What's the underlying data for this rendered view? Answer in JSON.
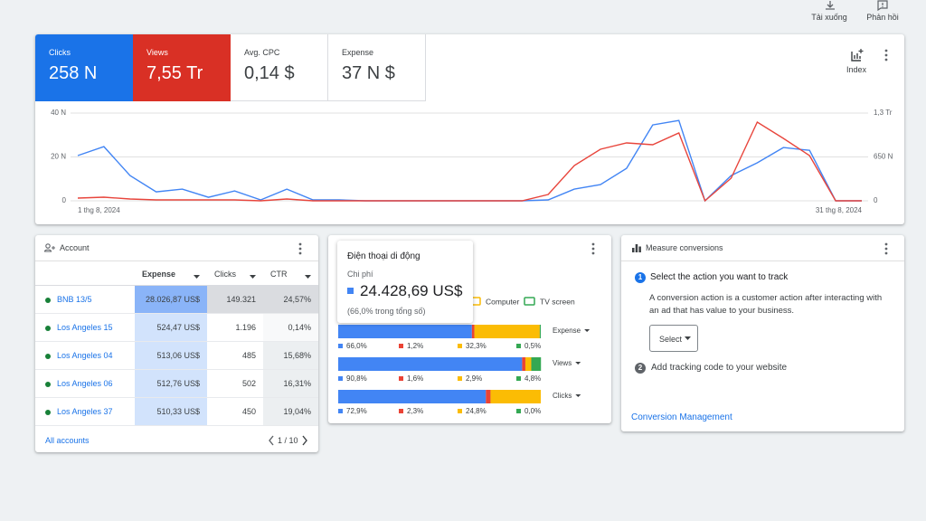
{
  "toolbar": {
    "download": "Tải xuống",
    "feedback": "Phản hồi"
  },
  "overview": {
    "metrics": [
      {
        "label": "Clicks",
        "value": "258 N"
      },
      {
        "label": "Views",
        "value": "7,55 Tr"
      },
      {
        "label": "Avg. CPC",
        "value": "0,14 $"
      },
      {
        "label": "Expense",
        "value": "37 N $"
      }
    ],
    "index_button": "Index"
  },
  "chart_data": [
    {
      "type": "line",
      "x": [
        "1 thg 8, 2024",
        null,
        null,
        null,
        null,
        null,
        null,
        null,
        null,
        null,
        null,
        null,
        null,
        null,
        null,
        null,
        null,
        null,
        null,
        null,
        null,
        null,
        null,
        null,
        null,
        null,
        null,
        null,
        null,
        null,
        "31 thg 8, 2024"
      ],
      "series": [
        {
          "color": "#4285f4",
          "values": [
            20600,
            24700,
            11500,
            4100,
            5300,
            1600,
            4500,
            400,
            5300,
            400,
            400,
            0,
            0,
            0,
            0,
            0,
            0,
            0,
            400,
            5300,
            7400,
            14800,
            34600,
            36600,
            0,
            11500,
            17300,
            24300,
            23000,
            0,
            0
          ]
        },
        {
          "color": "#e8453c",
          "axis": "y2",
          "values": [
            40000,
            53000,
            27000,
            13000,
            13000,
            13000,
            13000,
            0,
            27000,
            0,
            0,
            0,
            0,
            0,
            0,
            0,
            0,
            0,
            94000,
            523000,
            764000,
            858000,
            831000,
            1005000,
            0,
            335000,
            1166000,
            925000,
            670000,
            0,
            0
          ]
        }
      ],
      "ylim": [
        0,
        40000
      ],
      "yticks": [
        0,
        {
          "value": 20000,
          "label": "20 N"
        },
        {
          "value": 40000,
          "label": "40 N"
        }
      ],
      "y2lim": [
        0,
        1300000
      ],
      "y2ticks": [
        0,
        {
          "value": 650000,
          "label": "650 N"
        },
        {
          "value": 1300000,
          "label": "1,3 Tr"
        }
      ],
      "grid": true
    },
    {
      "type": "stacked_bar",
      "categories": [
        "Expense",
        "Views",
        "Clicks"
      ],
      "xlim": [
        0,
        100
      ],
      "series": [
        {
          "color": "#4285f4",
          "values": [
            66.0,
            90.8,
            72.9
          ],
          "value_labels": [
            "66,0%",
            "90,8%",
            "72,9%"
          ]
        },
        {
          "color": "#ea4335",
          "values": [
            1.2,
            1.6,
            2.3
          ],
          "value_labels": [
            "1,2%",
            "1,6%",
            "2,3%"
          ]
        },
        {
          "name": "Computer",
          "color": "#fbbc04",
          "values": [
            32.3,
            2.9,
            24.8
          ],
          "value_labels": [
            "32,3%",
            "2,9%",
            "24,8%"
          ]
        },
        {
          "name": "TV screen",
          "color": "#34a853",
          "values": [
            0.5,
            4.8,
            0.0
          ],
          "value_labels": [
            "0,5%",
            "4,8%",
            "0,0%"
          ]
        }
      ],
      "tooltip": {
        "title": "Điện thoại di động",
        "metric": "Chi phí",
        "value": "24.428,69 US$",
        "share": "(66,0% trong tổng số)"
      }
    }
  ],
  "account_table": {
    "title": "Account",
    "columns": [
      "Expense",
      "Clicks",
      "CTR"
    ],
    "rows": [
      [
        "BNB 13/5",
        "28.026,87 US$",
        "149.321",
        "24,57%"
      ],
      [
        "Los Angeles 15",
        "524,47 US$",
        "1.196",
        "0,14%"
      ],
      [
        "Los Angeles 04",
        "513,06 US$",
        "485",
        "15,68%"
      ],
      [
        "Los Angeles 06",
        "512,76 US$",
        "502",
        "16,31%"
      ],
      [
        "Los Angeles 37",
        "510,33 US$",
        "450",
        "19,04%"
      ]
    ],
    "footer_link": "All accounts",
    "pagination": "1 / 10"
  },
  "conversions": {
    "title": "Measure conversions",
    "steps": [
      {
        "number": 1,
        "text": "Select the action you want to track",
        "description": "A conversion action is a customer action after interacting with an ad that has value to your business.",
        "button": "Select"
      },
      {
        "number": 2,
        "text": "Add tracking code to your website"
      }
    ],
    "link": "Conversion Management"
  }
}
